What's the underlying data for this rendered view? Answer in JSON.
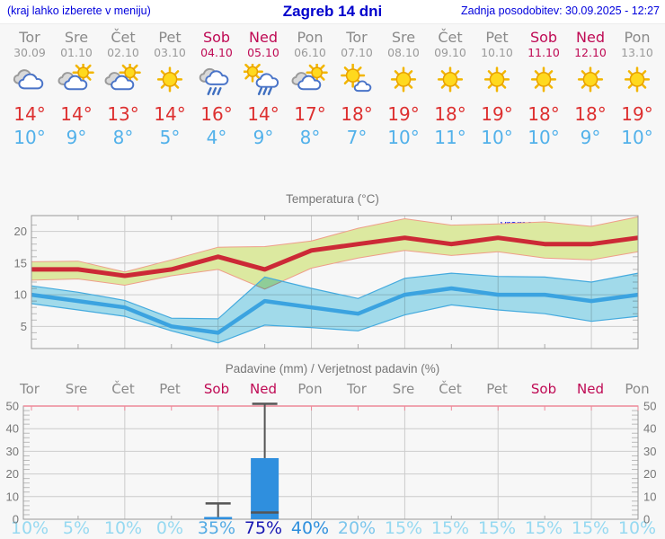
{
  "header": {
    "left_note": "(kraj lahko izberete v meniju)",
    "title": "Zagreb 14 dni",
    "updated": "Zadnja posodobitev: 30.09.2025 - 12:27"
  },
  "colors": {
    "high_temp": "#dd3030",
    "low_temp": "#52b1ea",
    "weekend": "#bf0a54",
    "weekday": "#8a8a8a",
    "header_blue": "#0000dd",
    "grid": "#cccccc",
    "frame": "#999999",
    "precip_frame_top": "#ee8899",
    "bar_blue": "#2f8fde"
  },
  "forecast": {
    "days": [
      {
        "name": "Tor",
        "date": "30.09",
        "icon": "cloudy",
        "high": "14°",
        "low": "10°",
        "weekend": false
      },
      {
        "name": "Sre",
        "date": "01.10",
        "icon": "partly-cloudy",
        "high": "14°",
        "low": "9°",
        "weekend": false
      },
      {
        "name": "Čet",
        "date": "02.10",
        "icon": "partly-cloudy",
        "high": "13°",
        "low": "8°",
        "weekend": false
      },
      {
        "name": "Pet",
        "date": "03.10",
        "icon": "sunny",
        "high": "14°",
        "low": "5°",
        "weekend": false
      },
      {
        "name": "Sob",
        "date": "04.10",
        "icon": "rain",
        "high": "16°",
        "low": "4°",
        "weekend": true
      },
      {
        "name": "Ned",
        "date": "05.10",
        "icon": "sun-rain",
        "high": "14°",
        "low": "9°",
        "weekend": true
      },
      {
        "name": "Pon",
        "date": "06.10",
        "icon": "partly-cloudy",
        "high": "17°",
        "low": "8°",
        "weekend": false
      },
      {
        "name": "Tor",
        "date": "07.10",
        "icon": "mostly-sunny",
        "high": "18°",
        "low": "7°",
        "weekend": false
      },
      {
        "name": "Sre",
        "date": "08.10",
        "icon": "sunny",
        "high": "19°",
        "low": "10°",
        "weekend": false
      },
      {
        "name": "Čet",
        "date": "09.10",
        "icon": "sunny",
        "high": "18°",
        "low": "11°",
        "weekend": false
      },
      {
        "name": "Pet",
        "date": "10.10",
        "icon": "sunny",
        "high": "19°",
        "low": "10°",
        "weekend": false
      },
      {
        "name": "Sob",
        "date": "11.10",
        "icon": "sunny",
        "high": "18°",
        "low": "10°",
        "weekend": true
      },
      {
        "name": "Ned",
        "date": "12.10",
        "icon": "sunny",
        "high": "18°",
        "low": "9°",
        "weekend": true
      },
      {
        "name": "Pon",
        "date": "13.10",
        "icon": "sunny",
        "high": "19°",
        "low": "10°",
        "weekend": false
      }
    ]
  },
  "chart_data": [
    {
      "type": "area",
      "title": "Temperatura (°C)",
      "watermark": "vreme.us",
      "categories": [
        "Tor 30.09",
        "Sre 01.10",
        "Čet 02.10",
        "Pet 03.10",
        "Sob 04.10",
        "Ned 05.10",
        "Pon 06.10",
        "Tor 07.10",
        "Sre 08.10",
        "Čet 09.10",
        "Pet 10.10",
        "Sob 11.10",
        "Ned 12.10",
        "Pon 13.10"
      ],
      "ylim": [
        1.5,
        22.5
      ],
      "yticks": [
        5,
        10,
        15,
        20
      ],
      "series": [
        {
          "name": "max-temp",
          "color": "#cc2936",
          "values": [
            14,
            14,
            13,
            14,
            16,
            14,
            17,
            18,
            19,
            18,
            19,
            18,
            18,
            19
          ]
        },
        {
          "name": "max-temp-range-upper",
          "color": "#dce9a0",
          "values": [
            15.2,
            15.3,
            13.6,
            15.5,
            17.5,
            17.6,
            18.5,
            20.5,
            22,
            21,
            21.2,
            21.5,
            20.8,
            22.3
          ]
        },
        {
          "name": "max-temp-range-lower",
          "color": "#dce9a0",
          "values": [
            12.3,
            12.5,
            11.5,
            13,
            14,
            10.9,
            14.2,
            15.8,
            17,
            16.2,
            16.8,
            15.8,
            15.5,
            16.8
          ]
        },
        {
          "name": "min-temp",
          "color": "#3ba3e0",
          "values": [
            10,
            9,
            8,
            5,
            4,
            9,
            8,
            7,
            10,
            11,
            10,
            10,
            9,
            10
          ]
        },
        {
          "name": "min-temp-range-upper",
          "color": "#a6e1f2",
          "values": [
            11.4,
            10.4,
            9.1,
            6.3,
            6.2,
            12.8,
            11,
            9.4,
            12.6,
            13.4,
            12.9,
            12.8,
            12,
            13.4
          ]
        },
        {
          "name": "min-temp-range-lower",
          "color": "#a6e1f2",
          "values": [
            8.6,
            7.6,
            6.6,
            4.3,
            2.4,
            5.2,
            4.8,
            4.3,
            6.8,
            8.4,
            7.6,
            7,
            5.8,
            6.6
          ]
        }
      ]
    },
    {
      "type": "bar",
      "title": "Padavine (mm) / Verjetnost padavin (%)",
      "categories": [
        "Tor",
        "Sre",
        "Čet",
        "Pet",
        "Sob",
        "Ned",
        "Pon",
        "Tor",
        "Sre",
        "Čet",
        "Pet",
        "Sob",
        "Ned",
        "Pon"
      ],
      "weekend_indices": [
        4,
        5,
        11,
        12
      ],
      "ylim": [
        0,
        50
      ],
      "yticks": [
        0,
        10,
        20,
        30,
        40,
        50
      ],
      "values": [
        0,
        0,
        0,
        0,
        1,
        27,
        0,
        0,
        0,
        0,
        0,
        0,
        0,
        0
      ],
      "whiskers": [
        {
          "index": 4,
          "low": 0,
          "high": 7
        },
        {
          "index": 5,
          "low": 3,
          "high": 51
        }
      ],
      "probabilities": [
        "10%",
        "5%",
        "10%",
        "0%",
        "35%",
        "75%",
        "40%",
        "20%",
        "15%",
        "15%",
        "15%",
        "15%",
        "15%",
        "10%"
      ],
      "probability_colors": [
        "#96d9f1",
        "#96d9f1",
        "#96d9f1",
        "#96d9f1",
        "#54abe4",
        "#1717b3",
        "#2e8fdd",
        "#7cc6ec",
        "#96d9f1",
        "#96d9f1",
        "#96d9f1",
        "#96d9f1",
        "#96d9f1",
        "#96d9f1"
      ]
    }
  ]
}
